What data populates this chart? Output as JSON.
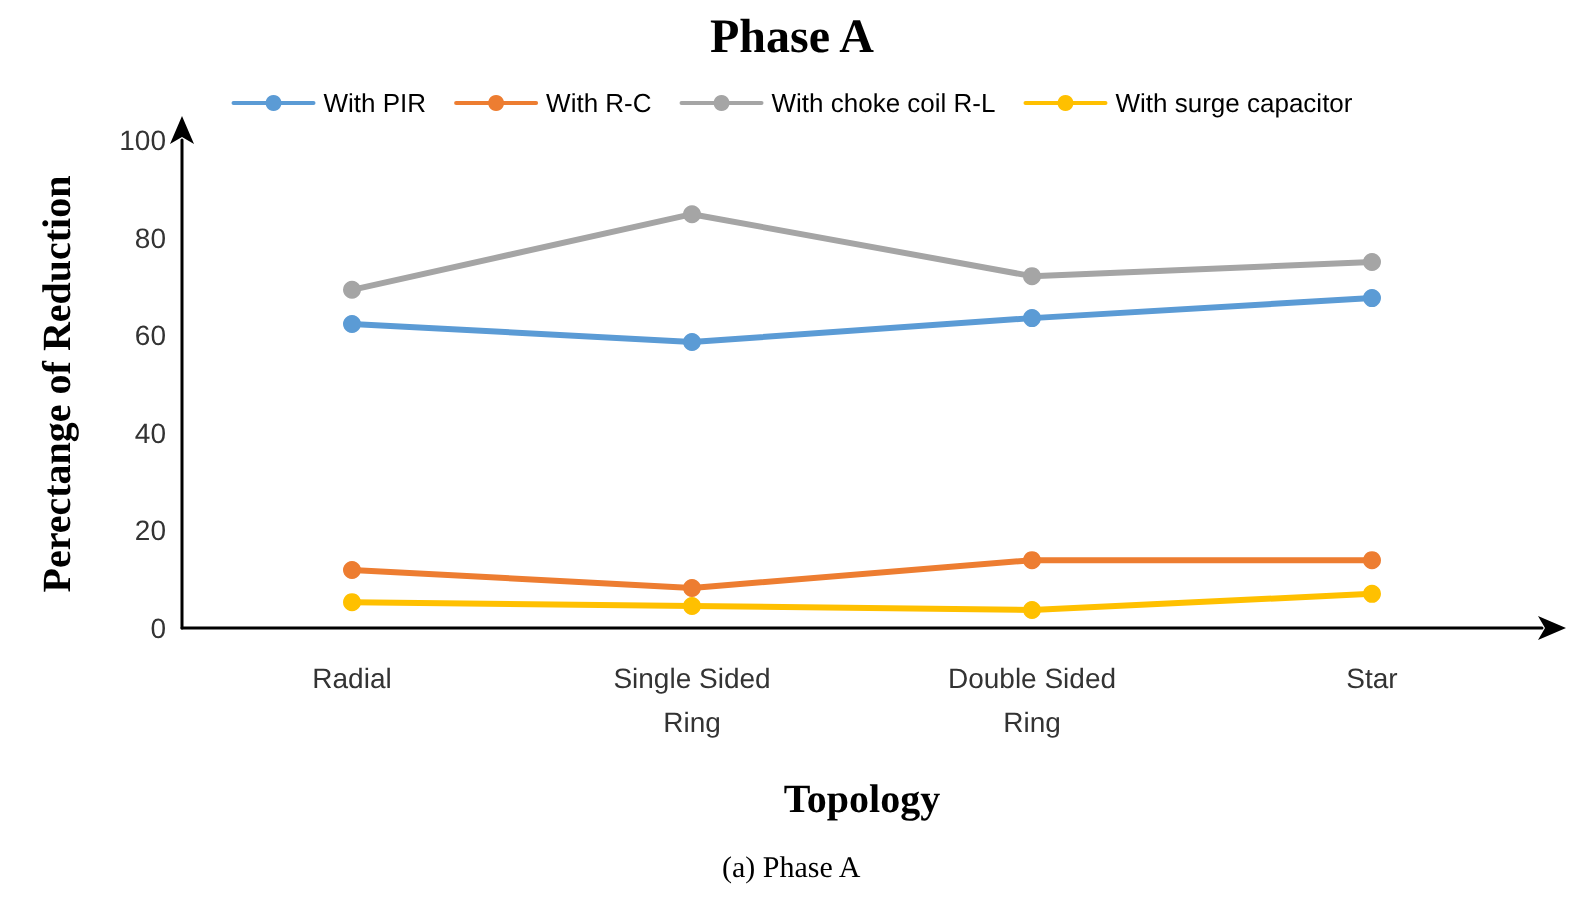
{
  "chart_data": {
    "type": "line",
    "title": "Phase A",
    "xlabel": "Topology",
    "ylabel": "Perectange of Reduction",
    "annotations": [
      "(a) Phase A"
    ],
    "categories": [
      "Radial",
      "Single Sided\nRing",
      "Double Sided\nRing",
      "Star"
    ],
    "series": [
      {
        "name": "With PIR",
        "color": "#5b9bd5",
        "values": [
          62.3,
          58.6,
          63.5,
          67.6
        ]
      },
      {
        "name": "With R-C",
        "color": "#ed7d31",
        "values": [
          11.9,
          8.2,
          13.9,
          13.9
        ]
      },
      {
        "name": "With choke coil R-L",
        "color": "#a5a5a5",
        "values": [
          69.3,
          84.8,
          72.1,
          75
        ]
      },
      {
        "name": "With surge capacitor",
        "color": "#ffc000",
        "values": [
          5.3,
          4.5,
          3.7,
          7
        ]
      }
    ],
    "ylim": [
      0,
      100
    ],
    "yticks": [
      0,
      20,
      40,
      60,
      80,
      100
    ],
    "grid": false,
    "legend": "top",
    "marker": "circle",
    "line_style": "solid"
  }
}
